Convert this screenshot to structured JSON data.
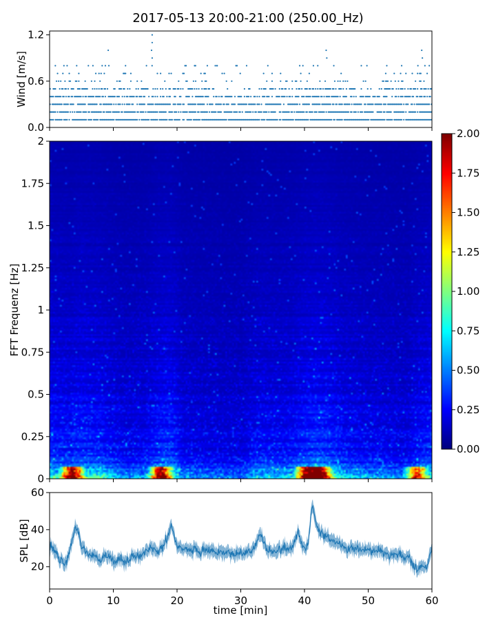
{
  "figure": {
    "title": "2017-05-13 20:00-21:00 (250.00_Hz)",
    "shared_xlabel": "time [min]"
  },
  "chart_data": [
    {
      "type": "scatter",
      "name": "wind",
      "ylabel": "Wind [m/s]",
      "xlim": [
        0,
        60
      ],
      "ylim": [
        0,
        1.25
      ],
      "yticks": [
        0.0,
        0.6,
        1.2
      ],
      "ytick_labels": [
        "0.0",
        "0.6",
        "1.2"
      ],
      "xticks": [
        0,
        10,
        20,
        30,
        40,
        50,
        60
      ],
      "xtick_labels_visible": false,
      "color": "#1f77b4",
      "levels": [
        0.1,
        0.2,
        0.3,
        0.4,
        0.5,
        0.6,
        0.7,
        0.8,
        0.9,
        1.0,
        1.1,
        1.2
      ],
      "level_occupancy": [
        0.88,
        0.8,
        0.75,
        0.62,
        0.48,
        0.2,
        0.1,
        0.05,
        0.02,
        0.01,
        0.004,
        0.002
      ],
      "points": [
        {
          "x": 9.2,
          "y": 1.0
        },
        {
          "x": 16.1,
          "y": 1.2
        },
        {
          "x": 16.1,
          "y": 1.1
        },
        {
          "x": 16.0,
          "y": 1.0
        },
        {
          "x": 16.1,
          "y": 0.9
        },
        {
          "x": 43.4,
          "y": 1.0
        },
        {
          "x": 43.5,
          "y": 0.9
        },
        {
          "x": 58.4,
          "y": 1.0
        },
        {
          "x": 58.5,
          "y": 0.9
        },
        {
          "x": 26.0,
          "y": 0.8
        },
        {
          "x": 26.3,
          "y": 0.8
        },
        {
          "x": 0.9,
          "y": 0.8
        },
        {
          "x": 6.8,
          "y": 0.8
        },
        {
          "x": 9.3,
          "y": 0.8
        },
        {
          "x": 22.9,
          "y": 0.8
        },
        {
          "x": 15.2,
          "y": 0.8
        },
        {
          "x": 41.4,
          "y": 0.8
        },
        {
          "x": 44.6,
          "y": 0.8
        },
        {
          "x": 49.8,
          "y": 0.8
        },
        {
          "x": 57.8,
          "y": 0.8
        },
        {
          "x": 58.9,
          "y": 0.8
        }
      ]
    },
    {
      "type": "heatmap",
      "name": "spectrogram",
      "ylabel": "FFT Frequenz [Hz]",
      "xlim": [
        0,
        60
      ],
      "ylim": [
        0,
        2
      ],
      "yticks": [
        0,
        0.25,
        0.5,
        0.75,
        1,
        1.25,
        1.5,
        1.75,
        2
      ],
      "ytick_labels": [
        "0",
        "0.25",
        "0.5",
        "0.75",
        "1",
        "1.25",
        "1.5",
        "1.75",
        "2"
      ],
      "xticks": [
        0,
        10,
        20,
        30,
        40,
        50,
        60
      ],
      "xtick_labels_visible": false,
      "colormap": "jet",
      "colorbar": {
        "vmin": 0.0,
        "vmax": 2.0,
        "ticks": [
          0.0,
          0.25,
          0.5,
          0.75,
          1.0,
          1.25,
          1.5,
          1.75,
          2.0
        ],
        "tick_labels": [
          "0.00",
          "0.25",
          "0.50",
          "0.75",
          "1.00",
          "1.25",
          "1.50",
          "1.75",
          "2.00"
        ]
      },
      "time_profile_minutes": [
        0,
        3,
        5,
        8,
        10,
        12,
        15,
        17,
        19,
        21,
        25,
        30,
        33,
        36,
        38,
        40,
        42,
        44,
        46,
        50,
        54,
        56,
        58,
        60
      ],
      "time_profile_level": [
        0.75,
        0.65,
        0.8,
        0.7,
        0.55,
        0.45,
        0.5,
        0.75,
        0.85,
        0.45,
        0.4,
        0.35,
        0.6,
        0.55,
        0.6,
        0.8,
        0.9,
        0.8,
        0.6,
        0.5,
        0.45,
        0.4,
        0.65,
        0.75
      ],
      "low_frequency_hotspots": [
        {
          "t": 3.5,
          "f": 0.04,
          "v": 2.0
        },
        {
          "t": 17.5,
          "f": 0.03,
          "v": 1.7
        },
        {
          "t": 40.5,
          "f": 0.03,
          "v": 2.0
        },
        {
          "t": 42.5,
          "f": 0.03,
          "v": 1.9
        },
        {
          "t": 57.5,
          "f": 0.03,
          "v": 1.5
        }
      ]
    },
    {
      "type": "line",
      "name": "spl",
      "ylabel": "SPL [dB]",
      "xlabel": "time [min]",
      "xlim": [
        0,
        60
      ],
      "ylim": [
        8,
        60
      ],
      "yticks": [
        20,
        40,
        60
      ],
      "ytick_labels": [
        "20",
        "40",
        "60"
      ],
      "xticks": [
        0,
        10,
        20,
        30,
        40,
        50,
        60
      ],
      "xtick_labels": [
        "0",
        "10",
        "20",
        "30",
        "40",
        "50",
        "60"
      ],
      "color": "#1f77b4",
      "x": [
        0,
        1,
        2,
        2.5,
        3,
        3.5,
        4,
        4.5,
        5,
        6,
        7,
        8,
        9,
        10,
        11,
        12,
        13,
        14,
        15,
        16,
        17,
        18,
        18.5,
        19,
        19.5,
        20,
        21,
        22,
        23,
        24,
        25,
        26,
        27,
        28,
        29,
        30,
        31,
        31.5,
        32,
        32.5,
        33,
        33.5,
        34,
        35,
        36,
        37,
        38,
        38.5,
        39,
        39.5,
        40,
        40.5,
        41,
        41.3,
        41.7,
        42,
        42.5,
        43,
        44,
        45,
        46,
        47,
        48,
        49,
        50,
        51,
        52,
        53,
        54,
        55,
        56,
        56.5,
        57,
        57.5,
        58,
        58.5,
        59,
        59.5,
        60
      ],
      "y": [
        33,
        27,
        24,
        22,
        26,
        35,
        41,
        39,
        30,
        27,
        26,
        24,
        26,
        23,
        25,
        22,
        27,
        25,
        28,
        31,
        27,
        32,
        36,
        42,
        37,
        31,
        30,
        29,
        30,
        28,
        29,
        28,
        27,
        28,
        27,
        28,
        28,
        29,
        30,
        33,
        38,
        34,
        30,
        28,
        29,
        30,
        30,
        34,
        40,
        32,
        30,
        31,
        47,
        54,
        45,
        41,
        38,
        37,
        35,
        33,
        31,
        30,
        30,
        29,
        29,
        28,
        28,
        27,
        27,
        26,
        25,
        24,
        21,
        19,
        20,
        21,
        19,
        23,
        30
      ],
      "band": 3.5
    }
  ]
}
